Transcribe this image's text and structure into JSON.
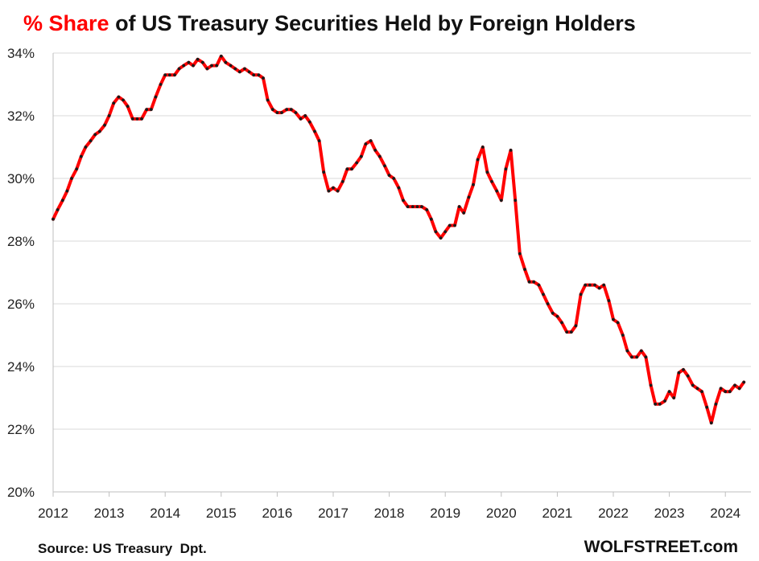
{
  "title": {
    "accent": "% Share",
    "rest": " of US Treasury Securities Held by Foreign Holders"
  },
  "footer": {
    "source": "Source: US Treasury  Dpt.",
    "brand": "WOLFSTREET.com"
  },
  "colors": {
    "line": "#ff0000",
    "markers": "#1a1a1a",
    "accent": "#ff0000",
    "grid": "#d9d9d9"
  },
  "chart_data": {
    "type": "line",
    "title": "% Share of US Treasury Securities Held by Foreign Holders",
    "xlabel": "",
    "ylabel": "",
    "xlim": [
      2012,
      2024.4
    ],
    "ylim": [
      20,
      34
    ],
    "y_ticks": [
      20,
      22,
      24,
      26,
      28,
      30,
      32,
      34
    ],
    "y_tick_labels": [
      "20%",
      "22%",
      "24%",
      "26%",
      "28%",
      "30%",
      "32%",
      "34%"
    ],
    "x_ticks": [
      2012,
      2013,
      2014,
      2015,
      2016,
      2017,
      2018,
      2019,
      2020,
      2021,
      2022,
      2023,
      2024
    ],
    "x_tick_labels": [
      "2012",
      "2013",
      "2014",
      "2015",
      "2016",
      "2017",
      "2018",
      "2019",
      "2020",
      "2021",
      "2022",
      "2023",
      "2024"
    ],
    "grid": "horizontal",
    "legend": "none",
    "series": [
      {
        "x": [
          2012.0,
          2012.08,
          2012.17,
          2012.25,
          2012.33,
          2012.42,
          2012.5,
          2012.58,
          2012.67,
          2012.75,
          2012.83,
          2012.92,
          2013.0,
          2013.08,
          2013.17,
          2013.25,
          2013.33,
          2013.42,
          2013.5,
          2013.58,
          2013.67,
          2013.75,
          2013.83,
          2013.92,
          2014.0,
          2014.08,
          2014.17,
          2014.25,
          2014.33,
          2014.42,
          2014.5,
          2014.58,
          2014.67,
          2014.75,
          2014.83,
          2014.92,
          2015.0,
          2015.08,
          2015.17,
          2015.25,
          2015.33,
          2015.42,
          2015.5,
          2015.58,
          2015.67,
          2015.75,
          2015.83,
          2015.92,
          2016.0,
          2016.08,
          2016.17,
          2016.25,
          2016.33,
          2016.42,
          2016.5,
          2016.58,
          2016.67,
          2016.75,
          2016.83,
          2016.92,
          2017.0,
          2017.08,
          2017.17,
          2017.25,
          2017.33,
          2017.42,
          2017.5,
          2017.58,
          2017.67,
          2017.75,
          2017.83,
          2017.92,
          2018.0,
          2018.08,
          2018.17,
          2018.25,
          2018.33,
          2018.42,
          2018.5,
          2018.58,
          2018.67,
          2018.75,
          2018.83,
          2018.92,
          2019.0,
          2019.08,
          2019.17,
          2019.25,
          2019.33,
          2019.42,
          2019.5,
          2019.58,
          2019.67,
          2019.75,
          2019.83,
          2019.92,
          2020.0,
          2020.08,
          2020.17,
          2020.25,
          2020.33,
          2020.42,
          2020.5,
          2020.58,
          2020.67,
          2020.75,
          2020.83,
          2020.92,
          2021.0,
          2021.08,
          2021.17,
          2021.25,
          2021.33,
          2021.42,
          2021.5,
          2021.58,
          2021.67,
          2021.75,
          2021.83,
          2021.92,
          2022.0,
          2022.08,
          2022.17,
          2022.25,
          2022.33,
          2022.42,
          2022.5,
          2022.58,
          2022.67,
          2022.75,
          2022.83,
          2022.92,
          2023.0,
          2023.08,
          2023.17,
          2023.25,
          2023.33,
          2023.42,
          2023.5,
          2023.58,
          2023.67,
          2023.75,
          2023.83,
          2023.92,
          2024.0,
          2024.08,
          2024.17,
          2024.25,
          2024.33
        ],
        "values": [
          28.7,
          29.0,
          29.3,
          29.6,
          30.0,
          30.3,
          30.7,
          31.0,
          31.2,
          31.4,
          31.5,
          31.7,
          32.0,
          32.4,
          32.6,
          32.5,
          32.3,
          31.9,
          31.9,
          31.9,
          32.2,
          32.2,
          32.6,
          33.0,
          33.3,
          33.3,
          33.3,
          33.5,
          33.6,
          33.7,
          33.6,
          33.8,
          33.7,
          33.5,
          33.6,
          33.6,
          33.9,
          33.7,
          33.6,
          33.5,
          33.4,
          33.5,
          33.4,
          33.3,
          33.3,
          33.2,
          32.5,
          32.2,
          32.1,
          32.1,
          32.2,
          32.2,
          32.1,
          31.9,
          32.0,
          31.8,
          31.5,
          31.2,
          30.2,
          29.6,
          29.7,
          29.6,
          29.9,
          30.3,
          30.3,
          30.5,
          30.7,
          31.1,
          31.2,
          30.9,
          30.7,
          30.4,
          30.1,
          30.0,
          29.7,
          29.3,
          29.1,
          29.1,
          29.1,
          29.1,
          29.0,
          28.7,
          28.3,
          28.1,
          28.3,
          28.5,
          28.5,
          29.1,
          28.9,
          29.4,
          29.8,
          30.6,
          31.0,
          30.2,
          29.9,
          29.6,
          29.3,
          30.3,
          30.9,
          29.3,
          27.6,
          27.1,
          26.7,
          26.7,
          26.6,
          26.3,
          26.0,
          25.7,
          25.6,
          25.4,
          25.1,
          25.1,
          25.3,
          26.3,
          26.6,
          26.6,
          26.6,
          26.5,
          26.6,
          26.1,
          25.5,
          25.4,
          25.0,
          24.5,
          24.3,
          24.3,
          24.5,
          24.3,
          23.4,
          22.8,
          22.8,
          22.9,
          23.2,
          23.0,
          23.8,
          23.9,
          23.7,
          23.4,
          23.3,
          23.2,
          22.7,
          22.2,
          22.8,
          23.3,
          23.2,
          23.2,
          23.4,
          23.3,
          23.5
        ]
      }
    ]
  }
}
